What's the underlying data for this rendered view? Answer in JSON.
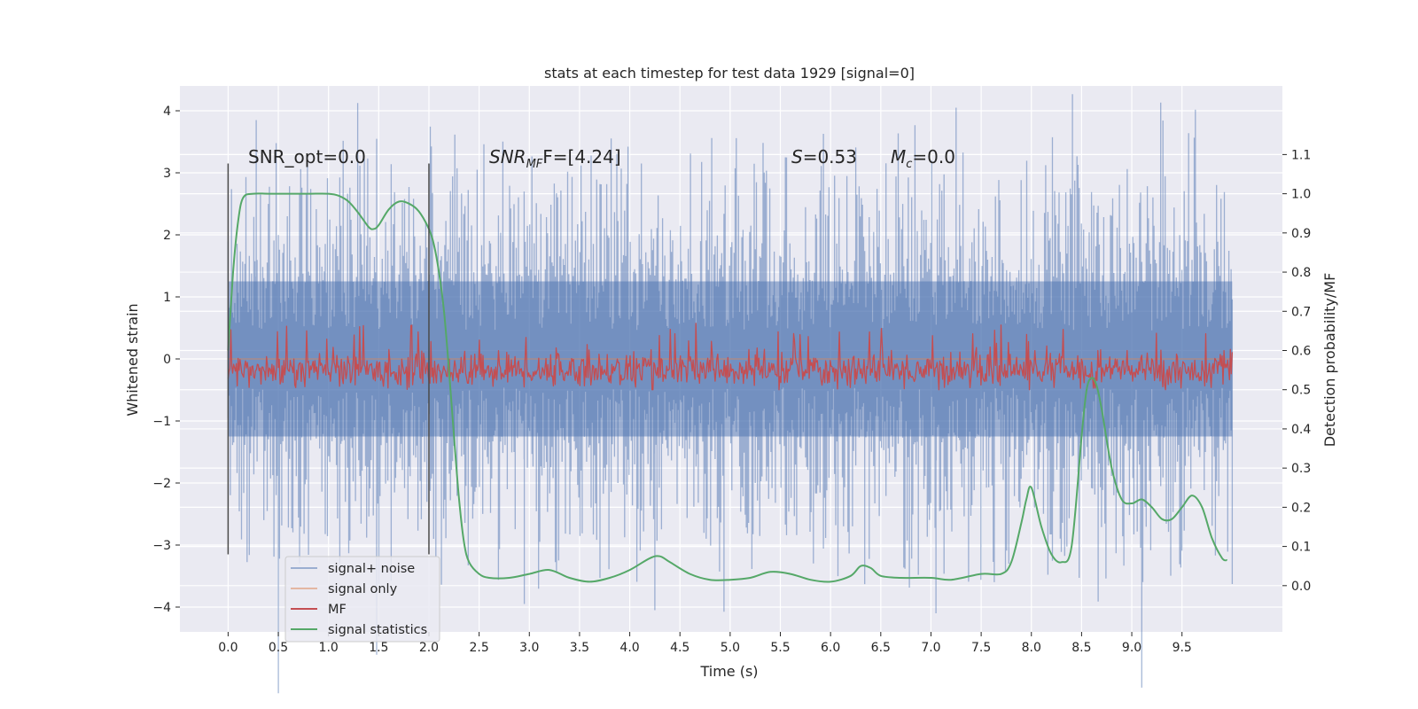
{
  "chart_data": {
    "type": "line",
    "title": "stats at each timestep for test data 1929 [signal=0]",
    "xlabel": "Time (s)",
    "ylabel": "Whitened strain",
    "y2label": "Detection probability/MF",
    "xlim": [
      -0.48,
      10.5
    ],
    "ylim": [
      -4.4,
      4.4
    ],
    "y2lim": [
      -0.118,
      1.275
    ],
    "x_ticks": [
      "0.0",
      "0.5",
      "1.0",
      "1.5",
      "2.0",
      "2.5",
      "3.0",
      "3.5",
      "4.0",
      "4.5",
      "5.0",
      "5.5",
      "6.0",
      "6.5",
      "7.0",
      "7.5",
      "8.0",
      "8.5",
      "9.0",
      "9.5"
    ],
    "x_tick_values": [
      0.0,
      0.5,
      1.0,
      1.5,
      2.0,
      2.5,
      3.0,
      3.5,
      4.0,
      4.5,
      5.0,
      5.5,
      6.0,
      6.5,
      7.0,
      7.5,
      8.0,
      8.5,
      9.0,
      9.5
    ],
    "y_ticks": [
      "−4",
      "−3",
      "−2",
      "−1",
      "0",
      "1",
      "2",
      "3",
      "4"
    ],
    "y_tick_values": [
      -4,
      -3,
      -2,
      -1,
      0,
      1,
      2,
      3,
      4
    ],
    "y2_ticks": [
      "0.0",
      "0.1",
      "0.2",
      "0.3",
      "0.4",
      "0.5",
      "0.6",
      "0.7",
      "0.8",
      "0.9",
      "1.0",
      "1.1"
    ],
    "y2_tick_values": [
      0.0,
      0.1,
      0.2,
      0.3,
      0.4,
      0.5,
      0.6,
      0.7,
      0.8,
      0.9,
      1.0,
      1.1
    ],
    "grid": true,
    "legend_position": "lower-left",
    "annotations": {
      "snr_opt": "SNR_opt=0.0",
      "snr_mf_main": "SNR",
      "snr_mf_sub": "MF",
      "snr_mf_rest": "F=[4.24]",
      "s_main": "S",
      "s_rest": "=0.53",
      "mc_main": "M",
      "mc_sub": "c",
      "mc_rest": "=0.0"
    },
    "vlines": [
      0.0,
      2.0
    ],
    "series": [
      {
        "name": "signal+ noise",
        "color": "#4c72b0",
        "x_range": [
          0.0,
          10.0
        ],
        "envelope_typical": [
          -2.3,
          2.3
        ],
        "envelope_extreme": [
          -4.1,
          4.1
        ],
        "y_peaks": [
          [
            0.28,
            3.85
          ],
          [
            7.25,
            4.05
          ],
          [
            7.05,
            -4.1
          ],
          [
            4.25,
            -4.05
          ],
          [
            2.95,
            -3.95
          ]
        ]
      },
      {
        "name": "signal only",
        "color": "#dd8452",
        "x": [
          0.0,
          10.0
        ],
        "y": [
          0.0,
          0.0
        ]
      },
      {
        "name": "MF",
        "color": "#c44e52",
        "axis": "right",
        "x_range": [
          0.0,
          10.0
        ],
        "typical_range": [
          0.5,
          0.6
        ],
        "max_approx": 0.67
      },
      {
        "name": "signal statistics",
        "color": "#55a868",
        "axis": "right",
        "x": [
          0.0,
          0.05,
          0.1,
          0.15,
          0.25,
          0.4,
          0.6,
          0.8,
          1.0,
          1.1,
          1.2,
          1.3,
          1.4,
          1.45,
          1.5,
          1.6,
          1.7,
          1.8,
          1.9,
          2.0,
          2.05,
          2.1,
          2.15,
          2.2,
          2.25,
          2.3,
          2.35,
          2.4,
          2.5,
          2.6,
          2.8,
          3.0,
          3.2,
          3.4,
          3.6,
          3.8,
          4.0,
          4.2,
          4.3,
          4.4,
          4.6,
          4.8,
          5.0,
          5.2,
          5.4,
          5.6,
          5.8,
          6.0,
          6.2,
          6.3,
          6.4,
          6.5,
          6.7,
          7.0,
          7.2,
          7.5,
          7.7,
          7.8,
          7.9,
          7.95,
          8.0,
          8.1,
          8.2,
          8.3,
          8.4,
          8.5,
          8.55,
          8.6,
          8.65,
          8.7,
          8.8,
          8.9,
          9.0,
          9.1,
          9.2,
          9.3,
          9.4,
          9.5,
          9.6,
          9.7,
          9.8,
          9.9,
          9.95
        ],
        "y": [
          0.6,
          0.8,
          0.93,
          0.99,
          1.0,
          1.0,
          1.0,
          1.0,
          1.0,
          0.995,
          0.98,
          0.95,
          0.915,
          0.91,
          0.92,
          0.96,
          0.98,
          0.975,
          0.955,
          0.91,
          0.87,
          0.8,
          0.7,
          0.55,
          0.38,
          0.22,
          0.11,
          0.06,
          0.03,
          0.02,
          0.02,
          0.03,
          0.04,
          0.02,
          0.01,
          0.02,
          0.04,
          0.07,
          0.075,
          0.06,
          0.03,
          0.015,
          0.015,
          0.02,
          0.035,
          0.03,
          0.015,
          0.01,
          0.025,
          0.05,
          0.045,
          0.025,
          0.02,
          0.02,
          0.015,
          0.03,
          0.03,
          0.06,
          0.16,
          0.22,
          0.25,
          0.15,
          0.08,
          0.06,
          0.1,
          0.38,
          0.5,
          0.53,
          0.51,
          0.45,
          0.3,
          0.22,
          0.21,
          0.22,
          0.2,
          0.17,
          0.17,
          0.2,
          0.23,
          0.2,
          0.12,
          0.07,
          0.065
        ]
      }
    ]
  }
}
